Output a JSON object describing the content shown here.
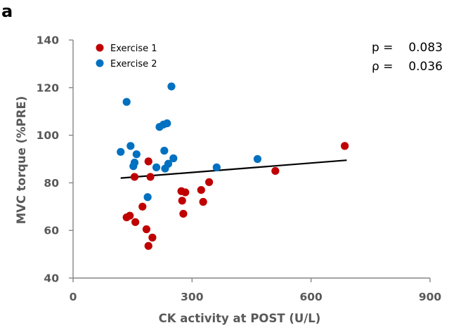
{
  "panel_label": "a",
  "chart_data": {
    "type": "scatter",
    "xlabel": "CK activity at POST (U/L)",
    "ylabel": "MVC torque (%PRE)",
    "xlim": [
      0,
      900
    ],
    "ylim": [
      40,
      140
    ],
    "xticks": [
      0,
      300,
      600,
      900
    ],
    "yticks": [
      40,
      60,
      80,
      100,
      120,
      140
    ],
    "grid": false,
    "legend_placement": "top-left",
    "series": [
      {
        "name": "Exercise 1",
        "color": "#c00000",
        "points": [
          [
            135,
            65.5
          ],
          [
            143,
            66.2
          ],
          [
            155,
            82.5
          ],
          [
            157,
            63.5
          ],
          [
            175,
            70
          ],
          [
            185,
            60.5
          ],
          [
            190,
            89
          ],
          [
            190,
            53.5
          ],
          [
            195,
            82.5
          ],
          [
            200,
            57
          ],
          [
            273,
            76.5
          ],
          [
            275,
            72.5
          ],
          [
            278,
            67
          ],
          [
            283,
            76
          ],
          [
            323,
            77
          ],
          [
            328,
            72
          ],
          [
            343,
            80.3
          ],
          [
            510,
            85
          ],
          [
            685,
            95.5
          ]
        ]
      },
      {
        "name": "Exercise 2",
        "color": "#0070c0",
        "points": [
          [
            120,
            93
          ],
          [
            135,
            114
          ],
          [
            145,
            95.5
          ],
          [
            152,
            87
          ],
          [
            155,
            88.5
          ],
          [
            160,
            92
          ],
          [
            188,
            74
          ],
          [
            210,
            86.5
          ],
          [
            218,
            103.5
          ],
          [
            228,
            104.5
          ],
          [
            230,
            93.5
          ],
          [
            232,
            86
          ],
          [
            237,
            105
          ],
          [
            240,
            88
          ],
          [
            248,
            120.5
          ],
          [
            253,
            90.3
          ],
          [
            362,
            86.5
          ],
          [
            465,
            90
          ]
        ]
      }
    ],
    "trendline": {
      "x": [
        120,
        690
      ],
      "y": [
        82,
        89.5
      ],
      "color": "#000000"
    },
    "annotations": [
      {
        "label": "p =",
        "value": "0.083"
      },
      {
        "label": "ρ =",
        "value": "0.036"
      }
    ]
  }
}
